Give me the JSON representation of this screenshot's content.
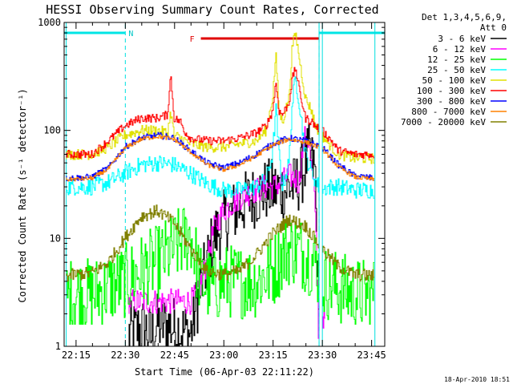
{
  "footer_timestamp": "18-Apr-2010 18:51",
  "chart_data": {
    "type": "line",
    "title": "HESSI Observing Summary Count Rates, Corrected",
    "xlabel": "Start Time (06-Apr-03 22:11:22)",
    "ylabel": "Corrected Count Rate (s⁻¹ detector⁻¹)",
    "y_scale": "log",
    "ylim": [
      1,
      1000
    ],
    "xlim": [
      "22:11:22",
      "23:49:00"
    ],
    "x_ticks": [
      "22:15",
      "22:30",
      "22:45",
      "23:00",
      "23:15",
      "23:30",
      "23:45"
    ],
    "y_ticks": [
      {
        "value": 1,
        "label": "1"
      },
      {
        "value": 10,
        "label": "10"
      },
      {
        "value": 100,
        "label": "100"
      },
      {
        "value": 1000,
        "label": "1000"
      }
    ],
    "legend": {
      "title_lines": [
        "Det 1,3,4,5,6,9,",
        "Att 0"
      ],
      "position": "right"
    },
    "annotations": {
      "night_label": "N",
      "flare_label": "F",
      "night_intervals": [
        [
          "22:11:22",
          "22:30"
        ],
        [
          "23:29",
          "23:49:00"
        ]
      ],
      "flare_interval": [
        "22:53",
        "23:29"
      ],
      "vertical_markers": [
        "22:30",
        "23:29"
      ],
      "data_gaps": [
        [
          "22:11:22",
          "22:12"
        ],
        [
          "23:29",
          "23:30"
        ],
        [
          "23:46",
          "23:49:00"
        ]
      ]
    },
    "series": [
      {
        "name": "3 - 6 keV",
        "color": "#000000",
        "x": [
          "22:31",
          "22:36",
          "22:38",
          "22:40",
          "22:45",
          "22:50",
          "22:52",
          "22:55",
          "22:57",
          "23:00",
          "23:05",
          "23:10",
          "23:13",
          "23:15",
          "23:17",
          "23:19",
          "23:20",
          "23:22",
          "23:23",
          "23:24",
          "23:25",
          "23:26",
          "23:27",
          "23:28",
          "23:29"
        ],
        "y": [
          1.3,
          1.5,
          1.2,
          1.6,
          1.5,
          1.3,
          2.5,
          6,
          10,
          14,
          20,
          25,
          28,
          28,
          28,
          28,
          30,
          30,
          35,
          40,
          50,
          60,
          50,
          40,
          1.5
        ],
        "noise": 0.3,
        "ymin_clip": 1
      },
      {
        "name": "6 - 12 keV",
        "color": "#ff00ff",
        "x": [
          "22:31",
          "22:35",
          "22:40",
          "22:45",
          "22:50",
          "22:52",
          "22:55",
          "22:57",
          "23:00",
          "23:05",
          "23:10",
          "23:13",
          "23:15",
          "23:17",
          "23:19",
          "23:20",
          "23:22",
          "23:23",
          "23:24",
          "23:25",
          "23:26",
          "23:27",
          "23:28",
          "23:29",
          "23:30",
          "23:31"
        ],
        "y": [
          2.6,
          2.6,
          2.6,
          2.6,
          2.6,
          3,
          6,
          12,
          18,
          24,
          28,
          30,
          30,
          32,
          36,
          38,
          36,
          32,
          60,
          90,
          80,
          40,
          20,
          1.3,
          2,
          1.8
        ],
        "noise": 0.12,
        "ymin_clip": 1
      },
      {
        "name": "12 - 25 keV",
        "color": "#00ff00",
        "x": [
          "22:12",
          "22:20",
          "22:25",
          "22:30",
          "22:35",
          "22:40",
          "22:45",
          "22:50",
          "22:53",
          "22:57",
          "23:00",
          "23:05",
          "23:10",
          "23:15",
          "23:18",
          "23:20",
          "23:22",
          "23:25",
          "23:28",
          "23:30",
          "23:35",
          "23:40",
          "23:45",
          "23:46"
        ],
        "y": [
          3,
          3,
          3.5,
          4,
          5,
          6,
          8,
          11,
          4,
          3.5,
          4,
          4,
          4,
          5,
          7,
          8,
          8,
          7,
          6,
          4,
          3.5,
          3,
          3,
          3
        ],
        "noise": 0.35,
        "ymin_clip": 1.6
      },
      {
        "name": "25 - 50 keV",
        "color": "#00ffff",
        "x": [
          "22:12",
          "22:20",
          "22:25",
          "22:30",
          "22:35",
          "22:40",
          "22:45",
          "22:50",
          "22:55",
          "23:00",
          "23:05",
          "23:10",
          "23:13",
          "23:15",
          "23:16",
          "23:17",
          "23:18",
          "23:20",
          "23:21",
          "23:22",
          "23:23",
          "23:25",
          "23:27",
          "23:28",
          "23:29",
          "23:30",
          "23:32",
          "23:35",
          "23:40",
          "23:46"
        ],
        "y": [
          30,
          30,
          33,
          40,
          48,
          50,
          48,
          40,
          32,
          28,
          28,
          30,
          35,
          60,
          160,
          60,
          30,
          50,
          180,
          300,
          200,
          60,
          40,
          35,
          30,
          28,
          30,
          30,
          28,
          28
        ],
        "noise": 0.08,
        "ymin_clip": 20
      },
      {
        "name": "50 - 100 keV",
        "color": "#e0e000",
        "x": [
          "22:12",
          "22:20",
          "22:25",
          "22:30",
          "22:35",
          "22:40",
          "22:43",
          "22:44",
          "22:45",
          "22:47",
          "22:50",
          "22:55",
          "23:00",
          "23:05",
          "23:10",
          "23:13",
          "23:15",
          "23:16",
          "23:17",
          "23:18",
          "23:20",
          "23:21",
          "23:22",
          "23:23",
          "23:25",
          "23:27",
          "23:28",
          "23:30",
          "23:33",
          "23:35",
          "23:40",
          "23:46"
        ],
        "y": [
          60,
          60,
          70,
          90,
          100,
          100,
          95,
          150,
          90,
          85,
          75,
          70,
          70,
          75,
          80,
          100,
          200,
          500,
          150,
          120,
          200,
          600,
          800,
          500,
          200,
          150,
          110,
          90,
          70,
          60,
          55,
          55
        ],
        "noise": 0.05,
        "ymin_clip": 40
      },
      {
        "name": "100 - 300 keV",
        "color": "#ff0000",
        "x": [
          "22:12",
          "22:20",
          "22:25",
          "22:30",
          "22:35",
          "22:40",
          "22:43",
          "22:44",
          "22:45",
          "22:47",
          "22:48",
          "22:50",
          "22:55",
          "23:00",
          "23:05",
          "23:10",
          "23:13",
          "23:15",
          "23:16",
          "23:17",
          "23:18",
          "23:20",
          "23:21",
          "23:22",
          "23:23",
          "23:25",
          "23:27",
          "23:28",
          "23:30",
          "23:33",
          "23:35",
          "23:40",
          "23:46"
        ],
        "y": [
          60,
          60,
          80,
          110,
          130,
          130,
          140,
          330,
          130,
          120,
          100,
          85,
          80,
          80,
          85,
          95,
          110,
          150,
          280,
          150,
          140,
          180,
          300,
          380,
          250,
          130,
          120,
          110,
          100,
          80,
          65,
          60,
          60
        ],
        "noise": 0.04,
        "ymin_clip": 40
      },
      {
        "name": "300 - 800 keV",
        "color": "#0000ff",
        "x": [
          "22:12",
          "22:20",
          "22:25",
          "22:30",
          "22:35",
          "22:40",
          "22:45",
          "22:50",
          "22:55",
          "23:00",
          "23:05",
          "23:10",
          "23:15",
          "23:20",
          "23:25",
          "23:30",
          "23:35",
          "23:40",
          "23:46"
        ],
        "y": [
          36,
          37,
          45,
          70,
          85,
          90,
          85,
          65,
          50,
          45,
          50,
          60,
          75,
          85,
          80,
          70,
          48,
          38,
          36
        ],
        "noise": 0.03,
        "ymin_clip": 20
      },
      {
        "name": "800 - 7000 keV",
        "color": "#ff8000",
        "x": [
          "22:12",
          "22:20",
          "22:25",
          "22:30",
          "22:35",
          "22:40",
          "22:45",
          "22:50",
          "22:55",
          "23:00",
          "23:05",
          "23:10",
          "23:15",
          "23:20",
          "23:25",
          "23:30",
          "23:35",
          "23:40",
          "23:46"
        ],
        "y": [
          35,
          36,
          44,
          68,
          83,
          88,
          83,
          63,
          48,
          43,
          48,
          58,
          73,
          83,
          78,
          68,
          46,
          37,
          35
        ],
        "noise": 0.02,
        "ymin_clip": 20
      },
      {
        "name": "7000 - 20000 keV",
        "color": "#808000",
        "x": [
          "22:12",
          "22:20",
          "22:25",
          "22:30",
          "22:35",
          "22:40",
          "22:45",
          "22:50",
          "22:55",
          "23:00",
          "23:05",
          "23:10",
          "23:15",
          "23:20",
          "23:25",
          "23:30",
          "23:35",
          "23:40",
          "23:46"
        ],
        "y": [
          4.5,
          4.8,
          6,
          10,
          16,
          18,
          14,
          8,
          5,
          4.6,
          5,
          7,
          11,
          15,
          13,
          8,
          5.5,
          4.6,
          4.5
        ],
        "noise": 0.06,
        "ymin_clip": 3
      }
    ]
  }
}
